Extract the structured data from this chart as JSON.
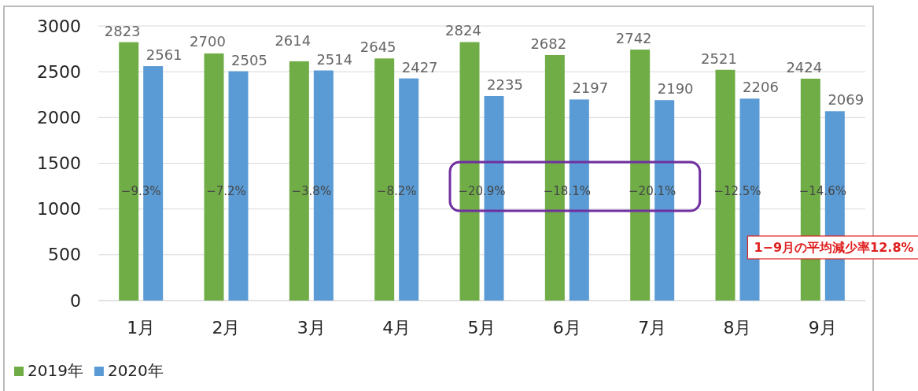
{
  "chart_data": {
    "type": "bar",
    "categories": [
      "1月",
      "2月",
      "3月",
      "4月",
      "5月",
      "6月",
      "7月",
      "8月",
      "9月"
    ],
    "series": [
      {
        "name": "2019年",
        "color": "#70ad47",
        "values": [
          2823,
          2700,
          2614,
          2645,
          2824,
          2682,
          2742,
          2521,
          2424
        ]
      },
      {
        "name": "2020年",
        "color": "#5b9bd5",
        "values": [
          2561,
          2505,
          2514,
          2427,
          2235,
          2197,
          2190,
          2206,
          2069
        ]
      }
    ],
    "ylim": [
      0,
      3000
    ],
    "yticks": [
      0,
      500,
      1000,
      1500,
      2000,
      2500,
      3000
    ],
    "grid": "y",
    "legend": "bottom left",
    "data_labels": true,
    "annotations": [
      {
        "text": "−9.3%",
        "x": "1月",
        "y": 1200
      },
      {
        "text": "−7.2%",
        "x": "2月",
        "y": 1200
      },
      {
        "text": "−3.8%",
        "x": "3月",
        "y": 1200
      },
      {
        "text": "−8.2%",
        "x": "4月",
        "y": 1200
      },
      {
        "text": "−20.9%",
        "x": "5月",
        "y": 1200
      },
      {
        "text": "−18.1%",
        "x": "6月",
        "y": 1200
      },
      {
        "text": "−20.1%",
        "x": "7月",
        "y": 1200
      },
      {
        "text": "−12.5%",
        "x": "8月",
        "y": 1200
      },
      {
        "text": "−14.6%",
        "x": "9月",
        "y": 1200
      },
      "1−9月の平均減少率12.8%"
    ]
  }
}
